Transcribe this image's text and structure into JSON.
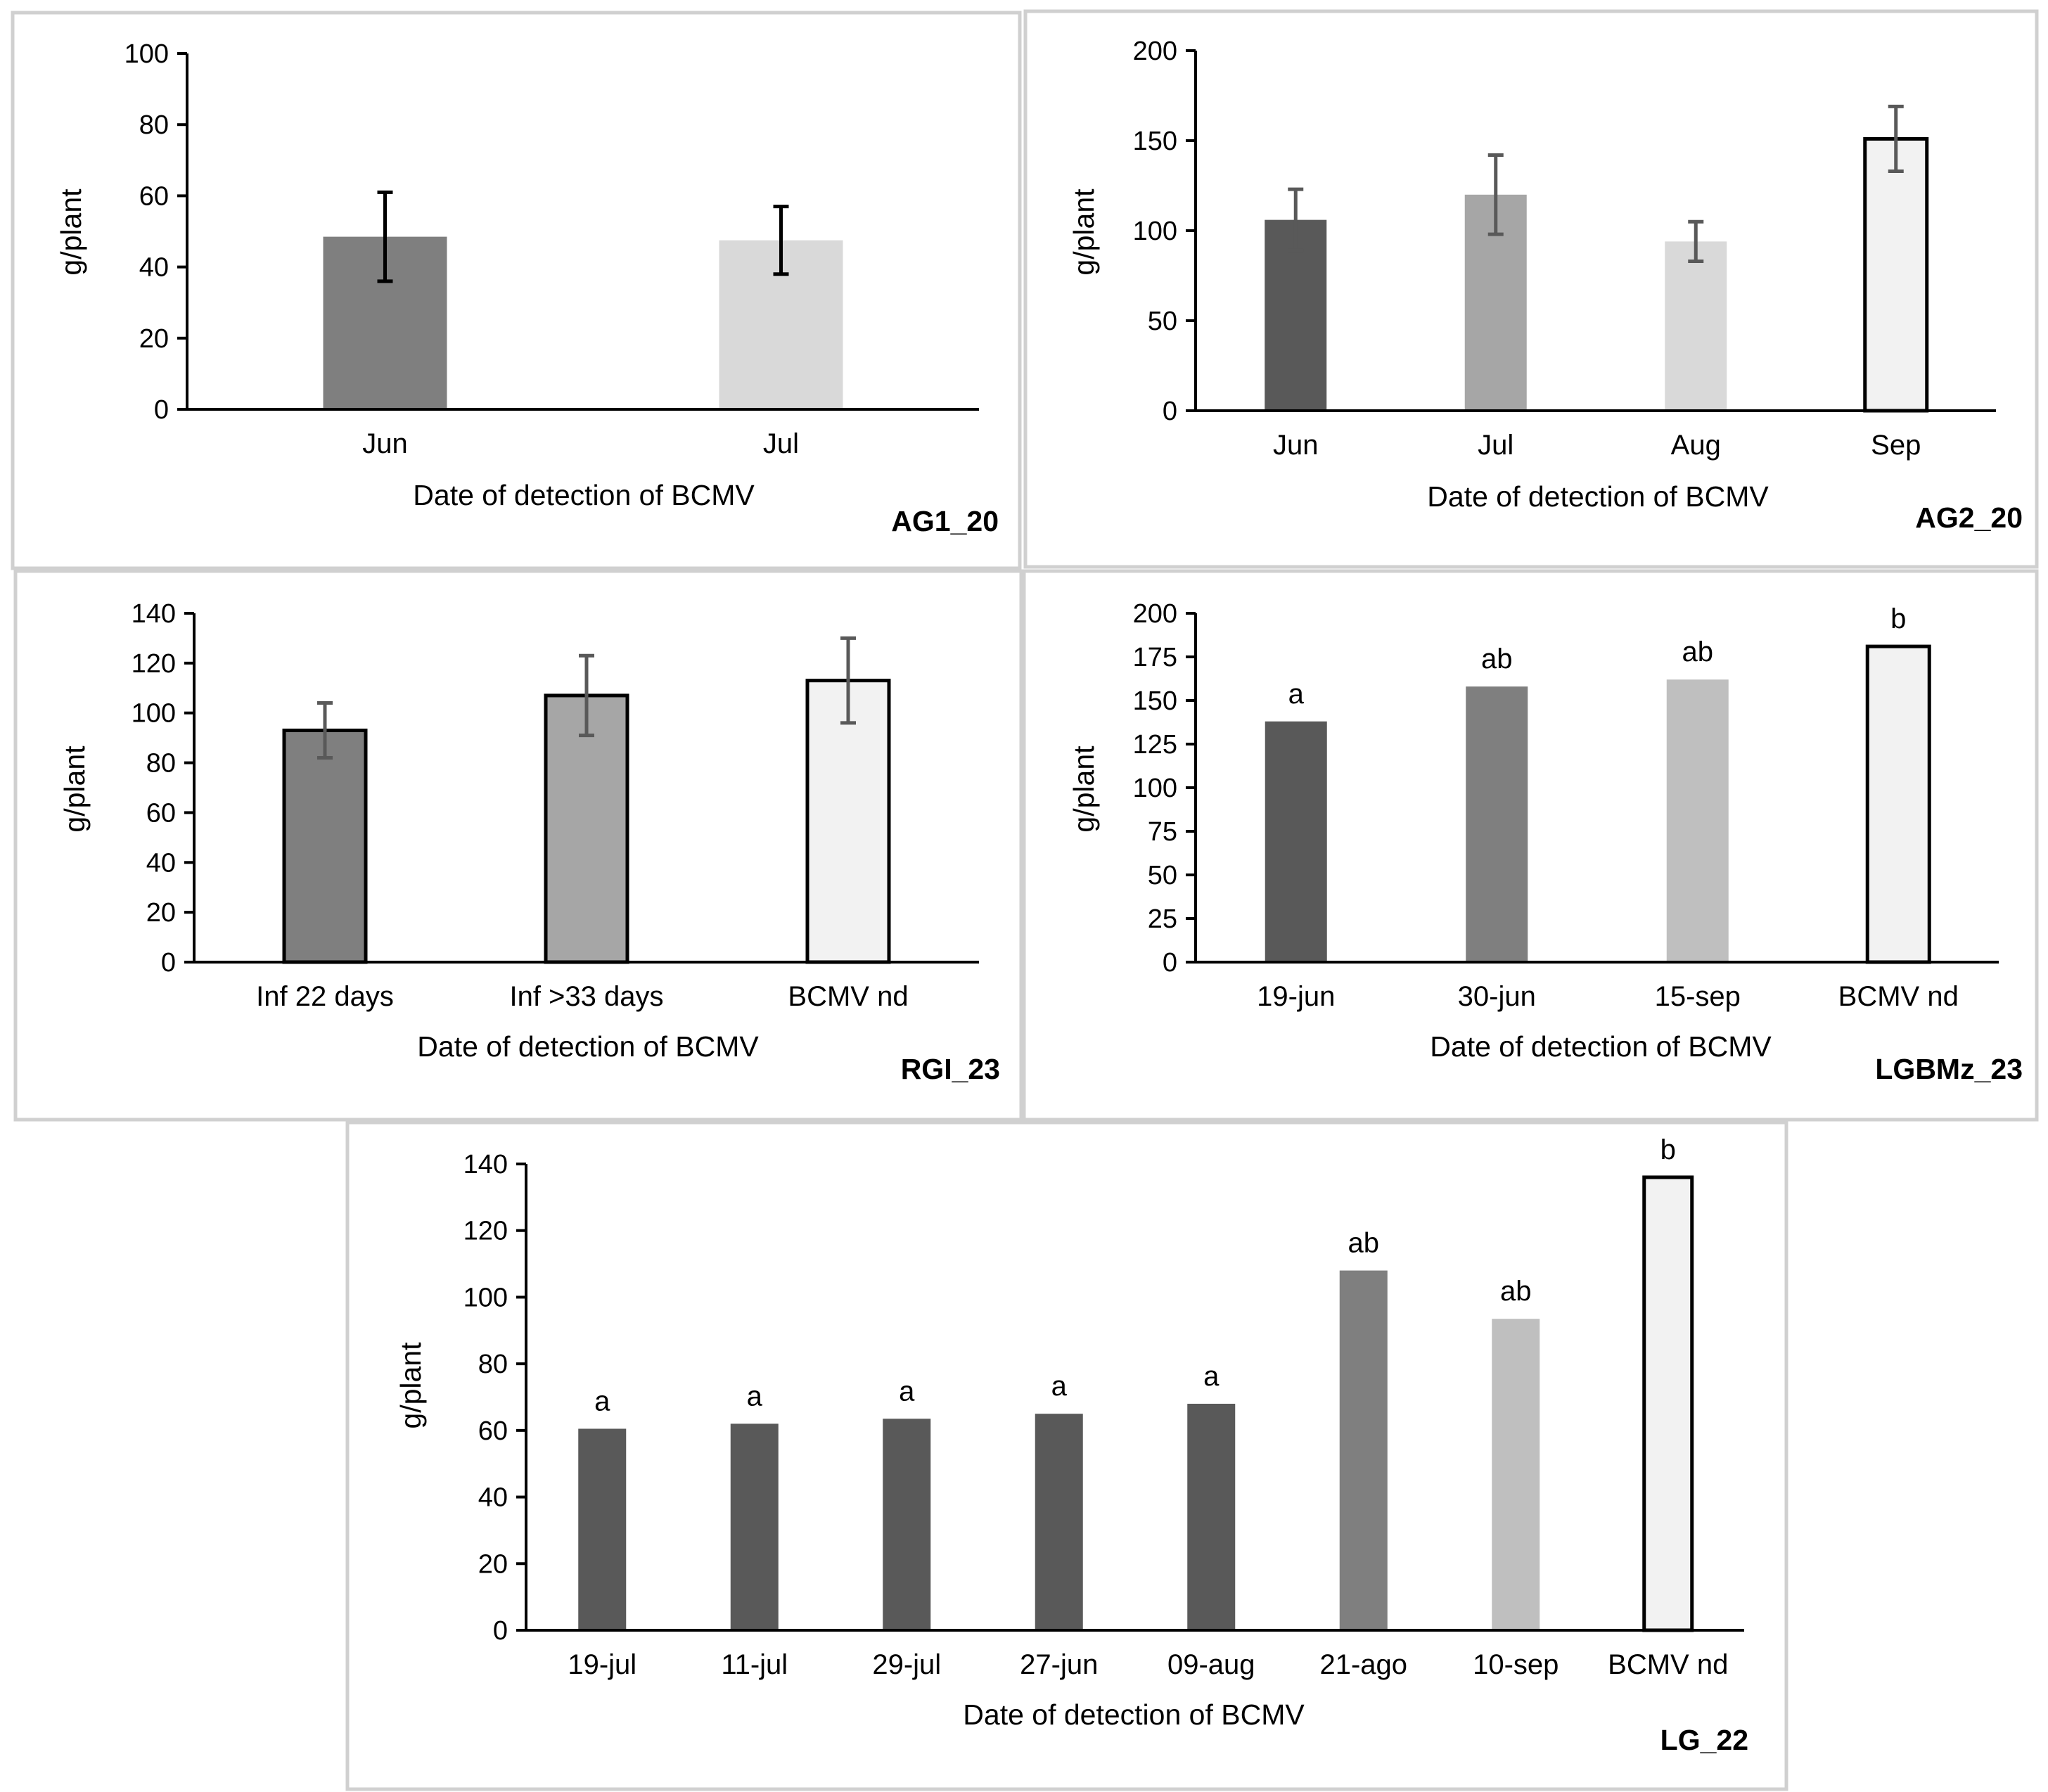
{
  "chart_data": [
    {
      "type": "bar",
      "panel_label": "AG1_20",
      "xlabel": "Date of detection of BCMV",
      "ylabel": "g/plant",
      "ylim": [
        0,
        100
      ],
      "yticks": [
        0,
        20,
        40,
        60,
        80,
        100
      ],
      "categories": [
        "Jun",
        "Jul"
      ],
      "values": [
        48.5,
        47.5
      ],
      "errors": [
        12.5,
        9.5
      ],
      "colors": [
        "#7f7f7f",
        "#d9d9d9"
      ],
      "outlined": [
        false,
        false
      ],
      "error_color": "#000000",
      "letters": []
    },
    {
      "type": "bar",
      "panel_label": "AG2_20",
      "xlabel": "Date of detection of BCMV",
      "ylabel": "g/plant",
      "ylim": [
        0,
        200
      ],
      "yticks": [
        0,
        50,
        100,
        150,
        200
      ],
      "categories": [
        "Jun",
        "Jul",
        "Aug",
        "Sep"
      ],
      "values": [
        106,
        120,
        94,
        151
      ],
      "errors": [
        17,
        22,
        11,
        18
      ],
      "colors": [
        "#595959",
        "#a6a6a6",
        "#d9d9d9",
        "#f2f2f2"
      ],
      "outlined": [
        false,
        false,
        false,
        true
      ],
      "error_color": "#595959",
      "letters": []
    },
    {
      "type": "bar",
      "panel_label": "RGI_23",
      "xlabel": "Date of detection of BCMV",
      "ylabel": "g/plant",
      "ylim": [
        0,
        140
      ],
      "yticks": [
        0,
        20,
        40,
        60,
        80,
        100,
        120,
        140
      ],
      "categories": [
        "Inf 22 days",
        "Inf >33 days",
        "BCMV nd"
      ],
      "values": [
        93,
        107,
        113
      ],
      "errors": [
        11,
        16,
        17
      ],
      "colors": [
        "#7f7f7f",
        "#a6a6a6",
        "#f2f2f2"
      ],
      "outlined": [
        true,
        true,
        true
      ],
      "error_color": "#595959",
      "letters": []
    },
    {
      "type": "bar",
      "panel_label": "LGBMz_23",
      "xlabel": "Date of detection of BCMV",
      "ylabel": "g/plant",
      "ylim": [
        0,
        200
      ],
      "yticks": [
        0,
        25,
        50,
        75,
        100,
        125,
        150,
        175,
        200
      ],
      "categories": [
        "19-jun",
        "30-jun",
        "15-sep",
        "BCMV nd"
      ],
      "values": [
        138,
        158,
        162,
        181
      ],
      "errors": [],
      "colors": [
        "#595959",
        "#7f7f7f",
        "#bfbfbf",
        "#f2f2f2"
      ],
      "outlined": [
        false,
        false,
        false,
        true
      ],
      "error_color": "#595959",
      "letters": [
        "a",
        "ab",
        "ab",
        "b"
      ]
    },
    {
      "type": "bar",
      "panel_label": "LG_22",
      "xlabel": "Date of detection of BCMV",
      "ylabel": "g/plant",
      "ylim": [
        0,
        140
      ],
      "yticks": [
        0,
        20,
        40,
        60,
        80,
        100,
        120,
        140
      ],
      "categories": [
        "19-jul",
        "11-jul",
        "29-jul",
        "27-jun",
        "09-aug",
        "21-ago",
        "10-sep",
        "BCMV nd"
      ],
      "values": [
        60.5,
        62,
        63.5,
        65,
        68,
        108,
        93.5,
        136
      ],
      "errors": [],
      "colors": [
        "#595959",
        "#595959",
        "#595959",
        "#595959",
        "#595959",
        "#7f7f7f",
        "#bfbfbf",
        "#f2f2f2"
      ],
      "outlined": [
        false,
        false,
        false,
        false,
        false,
        false,
        false,
        true
      ],
      "error_color": "#595959",
      "letters": [
        "a",
        "a",
        "a",
        "a",
        "a",
        "ab",
        "ab",
        "b"
      ]
    }
  ]
}
